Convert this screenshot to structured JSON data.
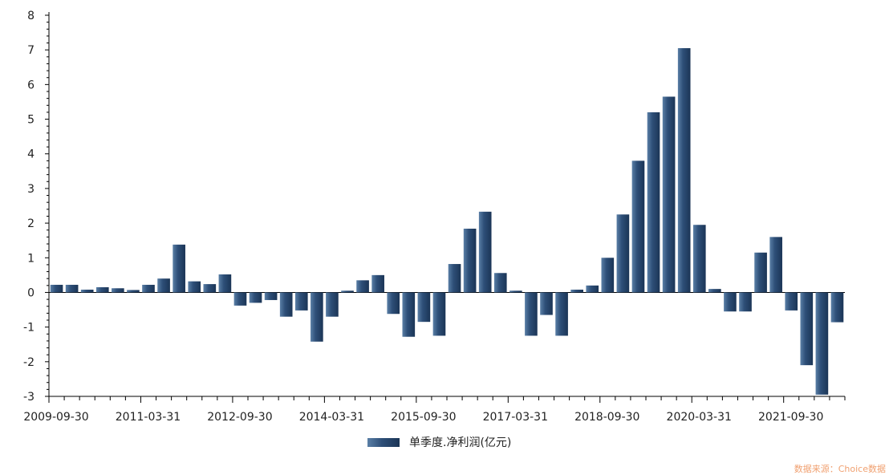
{
  "chart_data": {
    "type": "bar",
    "title": "",
    "xlabel": "",
    "ylabel": "",
    "ylim": [
      -3,
      8
    ],
    "yticks": [
      -3,
      -2,
      -1,
      0,
      1,
      2,
      3,
      4,
      5,
      6,
      7,
      8
    ],
    "xtick_labels": [
      "2009-09-30",
      "2011-03-31",
      "2012-09-30",
      "2014-03-31",
      "2015-09-30",
      "2017-03-31",
      "2018-09-30",
      "2020-03-31",
      "2021-09-30"
    ],
    "grid": false,
    "legend_position": "bottom",
    "series": [
      {
        "name": "单季度.净利润(亿元)",
        "color": "#2e4f78",
        "values": [
          0.22,
          0.22,
          0.08,
          0.15,
          0.12,
          0.07,
          0.22,
          0.4,
          1.38,
          0.32,
          0.24,
          0.52,
          -0.38,
          -0.3,
          -0.22,
          -0.7,
          -0.52,
          -1.42,
          -0.7,
          0.05,
          0.35,
          0.5,
          -0.62,
          -1.28,
          -0.85,
          -1.25,
          0.82,
          1.84,
          2.33,
          0.56,
          0.05,
          -1.25,
          -0.65,
          -1.25,
          0.08,
          0.2,
          1.0,
          2.25,
          3.8,
          5.2,
          5.65,
          7.05,
          1.95,
          0.1,
          -0.55,
          -0.55,
          1.15,
          1.6,
          -0.52,
          -2.1,
          -2.95,
          -0.86
        ]
      }
    ]
  },
  "legend": {
    "label": "单季度.净利润(亿元)"
  },
  "source_note": "数据来源：Choice数据"
}
